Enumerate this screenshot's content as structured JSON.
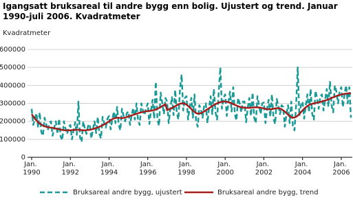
{
  "chart_data": {
    "type": "line",
    "title": "Igangsatt bruksareal til andre bygg enn bolig. Ujustert og trend. Januar 1990-juli 2006. Kvadratmeter",
    "y_label": "Kvadratmeter",
    "categories": [
      "Jan. 1990",
      null,
      null,
      null,
      null,
      null,
      null,
      null,
      null,
      null,
      null,
      null,
      null,
      null,
      null,
      null,
      null,
      null,
      null,
      null,
      null,
      null,
      null,
      null,
      "Jan. 1992",
      null,
      null,
      null,
      null,
      null,
      null,
      null,
      null,
      null,
      null,
      null,
      null,
      null,
      null,
      null,
      null,
      null,
      null,
      null,
      null,
      null,
      null,
      null,
      "Jan. 1994",
      null,
      null,
      null,
      null,
      null,
      null,
      null,
      null,
      null,
      null,
      null,
      null,
      null,
      null,
      null,
      null,
      null,
      null,
      null,
      null,
      null,
      null,
      null,
      "Jan. 1996",
      null,
      null,
      null,
      null,
      null,
      null,
      null,
      null,
      null,
      null,
      null,
      null,
      null,
      null,
      null,
      null,
      null,
      null,
      null,
      null,
      null,
      null,
      null,
      "Jan. 1998",
      null,
      null,
      null,
      null,
      null,
      null,
      null,
      null,
      null,
      null,
      null,
      null,
      null,
      null,
      null,
      null,
      null,
      null,
      null,
      null,
      null,
      null,
      null,
      "Jan. 2000",
      null,
      null,
      null,
      null,
      null,
      null,
      null,
      null,
      null,
      null,
      null,
      null,
      null,
      null,
      null,
      null,
      null,
      null,
      null,
      null,
      null,
      null,
      null,
      "Jan. 2002",
      null,
      null,
      null,
      null,
      null,
      null,
      null,
      null,
      null,
      null,
      null,
      null,
      null,
      null,
      null,
      null,
      null,
      null,
      null,
      null,
      null,
      null,
      null,
      "Jan. 2004",
      null,
      null,
      null,
      null,
      null,
      null,
      null,
      null,
      null,
      null,
      null,
      null,
      null,
      null,
      null,
      null,
      null,
      null,
      null,
      null,
      null,
      null,
      null,
      "Jan. 2006",
      null,
      null,
      null,
      null,
      null,
      null
    ],
    "series": [
      {
        "name": "Bruksareal andre bygg, ujustert",
        "color": "#1a9a96",
        "line_style": "dashed",
        "values": [
          270000,
          180000,
          215000,
          245000,
          165000,
          250000,
          140000,
          120000,
          220000,
          185000,
          150000,
          190000,
          200000,
          120000,
          165000,
          200000,
          130000,
          215000,
          115000,
          95000,
          200000,
          160000,
          130000,
          170000,
          180000,
          100000,
          150000,
          195000,
          125000,
          310000,
          110000,
          85000,
          200000,
          160000,
          130000,
          175000,
          185000,
          105000,
          155000,
          200000,
          135000,
          225000,
          130000,
          105000,
          225000,
          190000,
          165000,
          215000,
          230000,
          155000,
          210000,
          255000,
          190000,
          280000,
          180000,
          150000,
          270000,
          230000,
          200000,
          245000,
          255000,
          180000,
          235000,
          275000,
          210000,
          300000,
          205000,
          180000,
          300000,
          260000,
          235000,
          275000,
          300000,
          185000,
          260000,
          320000,
          215000,
          420000,
          210000,
          175000,
          360000,
          300000,
          240000,
          330000,
          310000,
          190000,
          270000,
          335000,
          235000,
          375000,
          250000,
          210000,
          380000,
          460000,
          260000,
          330000,
          340000,
          210000,
          280000,
          330000,
          220000,
          350000,
          200000,
          170000,
          290000,
          265000,
          220000,
          290000,
          300000,
          190000,
          275000,
          340000,
          240000,
          380000,
          250000,
          210000,
          360000,
          500000,
          270000,
          330000,
          350000,
          230000,
          305000,
          365000,
          255000,
          390000,
          240000,
          205000,
          330000,
          300000,
          250000,
          310000,
          310000,
          195000,
          275000,
          330000,
          230000,
          360000,
          220000,
          190000,
          340000,
          290000,
          240000,
          300000,
          305000,
          190000,
          270000,
          320000,
          225000,
          350000,
          215000,
          185000,
          325000,
          285000,
          240000,
          290000,
          280000,
          170000,
          240000,
          290000,
          190000,
          310000,
          175000,
          150000,
          290000,
          500000,
          230000,
          290000,
          310000,
          215000,
          290000,
          350000,
          250000,
          380000,
          240000,
          210000,
          370000,
          330000,
          270000,
          340000,
          350000,
          260000,
          320000,
          380000,
          280000,
          420000,
          290000,
          250000,
          400000,
          365000,
          300000,
          370000,
          390000,
          280000,
          350000,
          400000,
          300000,
          390000,
          220000
        ]
      },
      {
        "name": "Bruksareal andre bygg, trend",
        "color": "#a51c1c",
        "line_style": "solid",
        "values": [
          240000,
          228000,
          215000,
          205000,
          195000,
          188000,
          182000,
          177000,
          173000,
          170000,
          168000,
          166000,
          165000,
          164000,
          162000,
          160000,
          158000,
          156000,
          154000,
          152000,
          151000,
          150000,
          150000,
          150000,
          150000,
          151000,
          152000,
          153000,
          153000,
          153000,
          152000,
          151000,
          150000,
          150000,
          151000,
          152000,
          153000,
          155000,
          157000,
          160000,
          163000,
          166000,
          170000,
          174000,
          178000,
          183000,
          188000,
          194000,
          200000,
          206000,
          212000,
          216000,
          219000,
          220000,
          220000,
          219000,
          218000,
          219000,
          221000,
          224000,
          227000,
          230000,
          233000,
          236000,
          239000,
          242000,
          245000,
          248000,
          250000,
          252000,
          254000,
          256000,
          257000,
          258000,
          259000,
          261000,
          263000,
          266000,
          270000,
          275000,
          280000,
          285000,
          290000,
          295000,
          262000,
          266000,
          270000,
          274000,
          279000,
          284000,
          289000,
          294000,
          298000,
          300000,
          300000,
          298000,
          293000,
          286000,
          278000,
          269000,
          260000,
          252000,
          246000,
          243000,
          243000,
          246000,
          250000,
          255000,
          261000,
          267000,
          273000,
          279000,
          285000,
          291000,
          296000,
          300000,
          304000,
          307000,
          309000,
          310000,
          310000,
          309000,
          307000,
          304000,
          300000,
          296000,
          292000,
          288000,
          284000,
          281000,
          279000,
          277000,
          276000,
          275000,
          275000,
          275000,
          276000,
          277000,
          278000,
          278000,
          278000,
          277000,
          276000,
          274000,
          272000,
          270000,
          268000,
          267000,
          267000,
          268000,
          270000,
          272000,
          273000,
          273000,
          271000,
          267000,
          261000,
          254000,
          246000,
          237000,
          229000,
          223000,
          220000,
          221000,
          225000,
          232000,
          241000,
          251000,
          261000,
          270000,
          278000,
          285000,
          291000,
          295000,
          298000,
          300000,
          302000,
          304000,
          306000,
          308000,
          310000,
          313000,
          316000,
          319000,
          322000,
          326000,
          330000,
          334000,
          338000,
          341000,
          344000,
          347000,
          349000,
          351000,
          353000,
          354000,
          355000,
          356000,
          356000
        ]
      }
    ],
    "ylim": [
      0,
      600000
    ],
    "yticks": [
      0,
      100000,
      200000,
      300000,
      400000,
      500000,
      600000
    ],
    "grid": true,
    "legend": "bottom"
  }
}
